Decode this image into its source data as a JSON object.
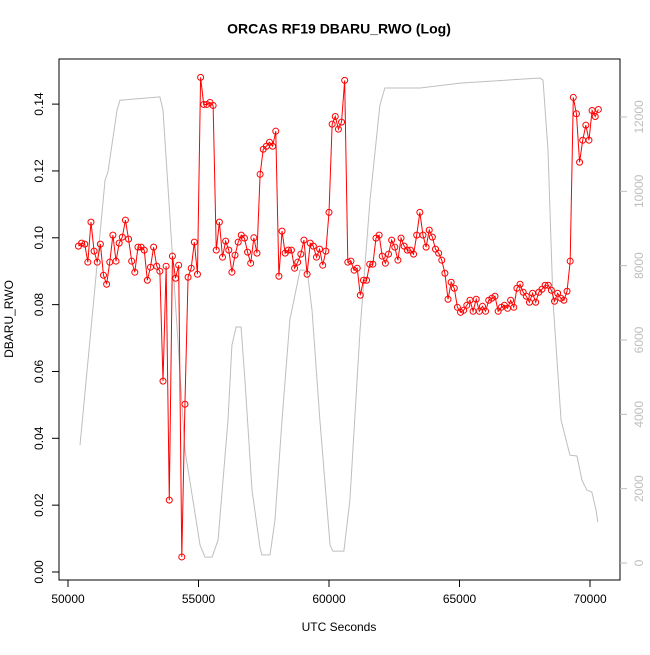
{
  "chart_data": {
    "type": "line",
    "title": "ORCAS RF19 DBARU_RWO (Log)",
    "xlabel": "UTC Seconds",
    "ylabel": "DBARU_RWO",
    "xlim": [
      49655,
      71149
    ],
    "ylim": [
      -0.0024,
      0.1535
    ],
    "y2lim": [
      -457,
      13560
    ],
    "xticks": [
      50000,
      55000,
      60000,
      65000,
      70000
    ],
    "yticks": [
      {
        "value": 0,
        "label": "0.00"
      },
      {
        "value": 0.02,
        "label": "0.02"
      },
      {
        "value": 0.04,
        "label": "0.04"
      },
      {
        "value": 0.06,
        "label": "0.06"
      },
      {
        "value": 0.08,
        "label": "0.08"
      },
      {
        "value": 0.1,
        "label": "0.10"
      },
      {
        "value": 0.12,
        "label": "0.12"
      },
      {
        "value": 0.14,
        "label": "0.14"
      }
    ],
    "y2ticks": [
      0,
      2000,
      4000,
      6000,
      8000,
      10000,
      12000
    ],
    "series": [
      {
        "color": "#ff0000",
        "marker": "circle",
        "x": [
          50400,
          50520,
          50640,
          50760,
          50880,
          51000,
          51120,
          51240,
          51360,
          51480,
          51600,
          51720,
          51840,
          51960,
          52080,
          52200,
          52320,
          52440,
          52560,
          52680,
          52800,
          52920,
          53040,
          53160,
          53280,
          53400,
          53520,
          53640,
          53760,
          53880,
          54000,
          54120,
          54240,
          54360,
          54480,
          54600,
          54720,
          54840,
          54960,
          55080,
          55200,
          55320,
          55440,
          55560,
          55680,
          55800,
          55920,
          56040,
          56160,
          56280,
          56400,
          56520,
          56640,
          56760,
          56880,
          57000,
          57120,
          57240,
          57360,
          57480,
          57600,
          57720,
          57840,
          57960,
          58080,
          58200,
          58320,
          58440,
          58560,
          58680,
          58800,
          58920,
          59040,
          59160,
          59280,
          59400,
          59520,
          59640,
          59760,
          59880,
          60000,
          60120,
          60240,
          60360,
          60480,
          60600,
          60720,
          60840,
          60960,
          61080,
          61200,
          61320,
          61440,
          61560,
          61680,
          61800,
          61920,
          62040,
          62160,
          62280,
          62400,
          62520,
          62640,
          62760,
          62880,
          63000,
          63120,
          63240,
          63360,
          63480,
          63600,
          63720,
          63840,
          63960,
          64080,
          64200,
          64320,
          64440,
          64560,
          64680,
          64800,
          64920,
          65040,
          65160,
          65280,
          65400,
          65520,
          65640,
          65760,
          65880,
          66000,
          66120,
          66240,
          66360,
          66480,
          66600,
          66720,
          66840,
          66960,
          67080,
          67200,
          67320,
          67440,
          67560,
          67680,
          67800,
          67920,
          68040,
          68160,
          68280,
          68400,
          68520,
          68640,
          68760,
          68880,
          69000,
          69120,
          69240,
          69360,
          69480,
          69600,
          69720,
          69840,
          69960,
          70080,
          70200,
          70320
        ],
        "values": [
          0.0975,
          0.0984,
          0.0981,
          0.0927,
          0.1047,
          0.096,
          0.0927,
          0.0981,
          0.0888,
          0.0861,
          0.0927,
          0.1008,
          0.093,
          0.0984,
          0.1002,
          0.1053,
          0.0996,
          0.093,
          0.0897,
          0.0972,
          0.0972,
          0.0963,
          0.0873,
          0.0912,
          0.0972,
          0.0915,
          0.09,
          0.0571,
          0.0915,
          0.0215,
          0.0945,
          0.0879,
          0.0918,
          0.0045,
          0.0502,
          0.0882,
          0.0909,
          0.0987,
          0.0891,
          0.148,
          0.1399,
          0.1399,
          0.1405,
          0.1396,
          0.0963,
          0.1047,
          0.0942,
          0.099,
          0.0963,
          0.0897,
          0.0948,
          0.0987,
          0.1008,
          0.0999,
          0.0957,
          0.0924,
          0.1,
          0.0954,
          0.119,
          0.1265,
          0.1274,
          0.1286,
          0.1274,
          0.1319,
          0.0885,
          0.102,
          0.0954,
          0.0963,
          0.0963,
          0.0909,
          0.0927,
          0.0951,
          0.0993,
          0.0891,
          0.0984,
          0.0975,
          0.0942,
          0.0966,
          0.0918,
          0.096,
          0.1076,
          0.134,
          0.1363,
          0.1325,
          0.1346,
          0.1471,
          0.0927,
          0.093,
          0.0903,
          0.0909,
          0.0828,
          0.0873,
          0.0873,
          0.0921,
          0.0921,
          0.0999,
          0.1008,
          0.0945,
          0.0924,
          0.0951,
          0.0993,
          0.0972,
          0.0933,
          0.0999,
          0.0975,
          0.0963,
          0.0963,
          0.0951,
          0.1008,
          0.1076,
          0.1008,
          0.0972,
          0.1023,
          0.1002,
          0.0966,
          0.0954,
          0.0933,
          0.0894,
          0.0816,
          0.0867,
          0.0849,
          0.0792,
          0.0777,
          0.0783,
          0.0798,
          0.0813,
          0.078,
          0.0816,
          0.078,
          0.0795,
          0.078,
          0.0813,
          0.0819,
          0.0825,
          0.078,
          0.0792,
          0.0798,
          0.0789,
          0.0813,
          0.0792,
          0.0849,
          0.0861,
          0.0837,
          0.0825,
          0.0807,
          0.0834,
          0.0807,
          0.0837,
          0.0846,
          0.0858,
          0.0858,
          0.0843,
          0.081,
          0.0834,
          0.0819,
          0.0813,
          0.084,
          0.093,
          0.142,
          0.1371,
          0.1226,
          0.1292,
          0.1337,
          0.1292,
          0.1381,
          0.1363,
          0.1384
        ]
      },
      {
        "color": "#bebebe",
        "axis": "y2",
        "x": [
          50460,
          51420,
          51530,
          51880,
          51990,
          53520,
          53640,
          54480,
          55060,
          55250,
          55520,
          55750,
          56130,
          56280,
          56440,
          56630,
          56780,
          57050,
          57360,
          57430,
          57740,
          57930,
          58200,
          58500,
          58890,
          59160,
          59350,
          59650,
          60040,
          60150,
          60570,
          60800,
          61190,
          61570,
          61950,
          62140,
          63490,
          65020,
          68080,
          68200,
          68390,
          68580,
          68890,
          69230,
          69500,
          69690,
          69880,
          70070,
          70230,
          70300
        ],
        "values": [
          3170,
          10300,
          10520,
          12190,
          12450,
          12540,
          12190,
          3040,
          480,
          160,
          160,
          620,
          3850,
          5860,
          6350,
          6350,
          4920,
          1960,
          400,
          220,
          220,
          1160,
          3850,
          6540,
          7880,
          7880,
          6800,
          3850,
          480,
          320,
          320,
          1690,
          6270,
          9760,
          12320,
          12780,
          12780,
          12910,
          13050,
          12990,
          11110,
          7070,
          3850,
          2900,
          2880,
          2230,
          1960,
          1910,
          1430,
          1100
        ]
      }
    ]
  }
}
